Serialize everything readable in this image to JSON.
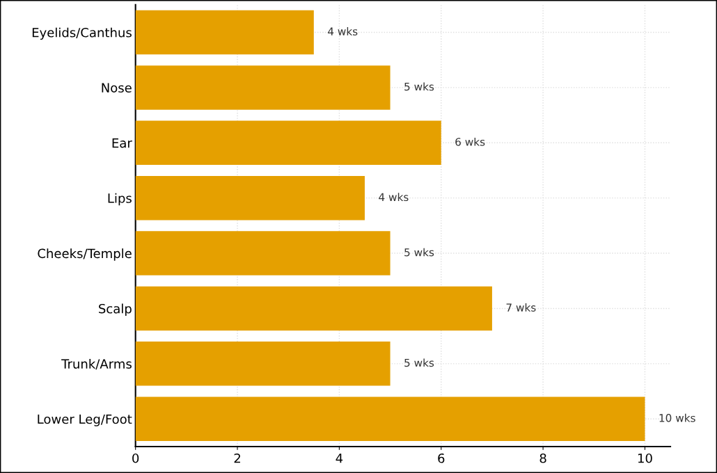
{
  "chart_data": {
    "type": "bar",
    "orientation": "horizontal",
    "categories": [
      "Eyelids/Canthus",
      "Nose",
      "Ear",
      "Lips",
      "Cheeks/Temple",
      "Scalp",
      "Trunk/Arms",
      "Lower Leg/Foot"
    ],
    "values": [
      3.5,
      5,
      6,
      4.5,
      5,
      7,
      5,
      10
    ],
    "value_labels": [
      "4 wks",
      "5 wks",
      "6 wks",
      "4 wks",
      "5 wks",
      "7 wks",
      "5 wks",
      "10 wks"
    ],
    "color": "#e5a000",
    "xlim": [
      0,
      10.5
    ],
    "xticks": [
      0,
      2,
      4,
      6,
      8,
      10
    ],
    "grid": true
  }
}
